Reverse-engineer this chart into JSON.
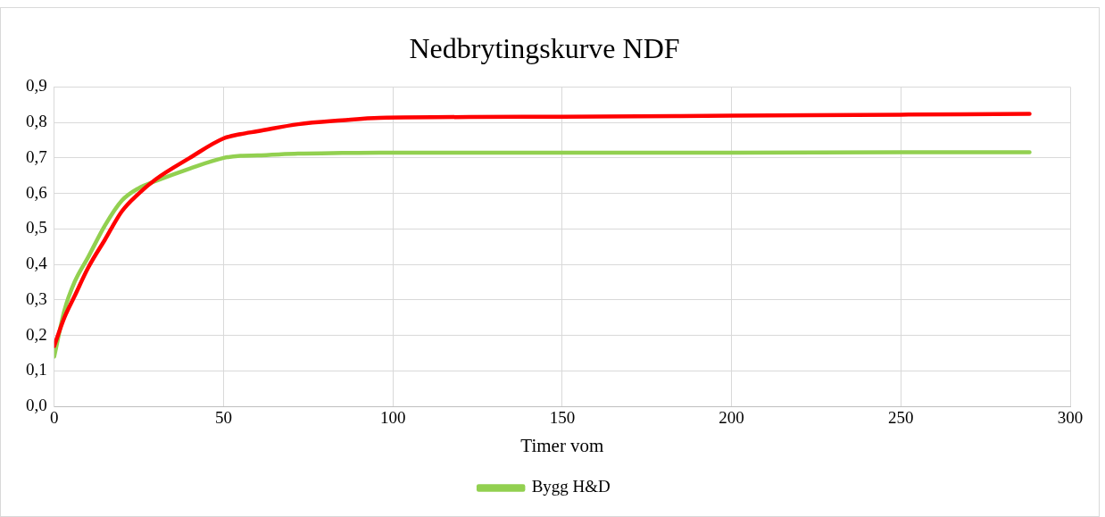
{
  "chart_data": {
    "type": "line",
    "title": "Nedbrytingskurve NDF",
    "xlabel": "Timer vom",
    "x": [
      0,
      3,
      6,
      10,
      15,
      20,
      25,
      30,
      40,
      50,
      55,
      60,
      72,
      85,
      96,
      150,
      200,
      250,
      288
    ],
    "series": [
      {
        "color": "#ff0000",
        "values": [
          0.17,
          0.25,
          0.31,
          0.39,
          0.47,
          0.55,
          0.6,
          0.64,
          0.7,
          0.755,
          0.767,
          0.775,
          0.795,
          0.806,
          0.813,
          0.816,
          0.819,
          0.822,
          0.824
        ]
      },
      {
        "name": "Bygg H&D",
        "color": "#92d050",
        "values": [
          0.14,
          0.27,
          0.35,
          0.42,
          0.51,
          0.58,
          0.615,
          0.635,
          0.67,
          0.7,
          0.706,
          0.707,
          0.712,
          0.714,
          0.715,
          0.715,
          0.715,
          0.716,
          0.716
        ]
      }
    ],
    "xlim": [
      0,
      300
    ],
    "xticks": [
      0,
      50,
      100,
      150,
      200,
      250,
      300
    ],
    "ylim": [
      0,
      0.9
    ],
    "yticks": [
      {
        "value": 0,
        "label": "0,0"
      },
      {
        "value": 0.1,
        "label": "0,1"
      },
      {
        "value": 0.2,
        "label": "0,2"
      },
      {
        "value": 0.3,
        "label": "0,3"
      },
      {
        "value": 0.4,
        "label": "0,4"
      },
      {
        "value": 0.5,
        "label": "0,5"
      },
      {
        "value": 0.6,
        "label": "0,6"
      },
      {
        "value": 0.7,
        "label": "0,7"
      },
      {
        "value": 0.8,
        "label": "0,8"
      },
      {
        "value": 0.9,
        "label": "0,9"
      }
    ],
    "grid": true,
    "legend": "bottom",
    "marker": "none",
    "line_style": "solid"
  }
}
